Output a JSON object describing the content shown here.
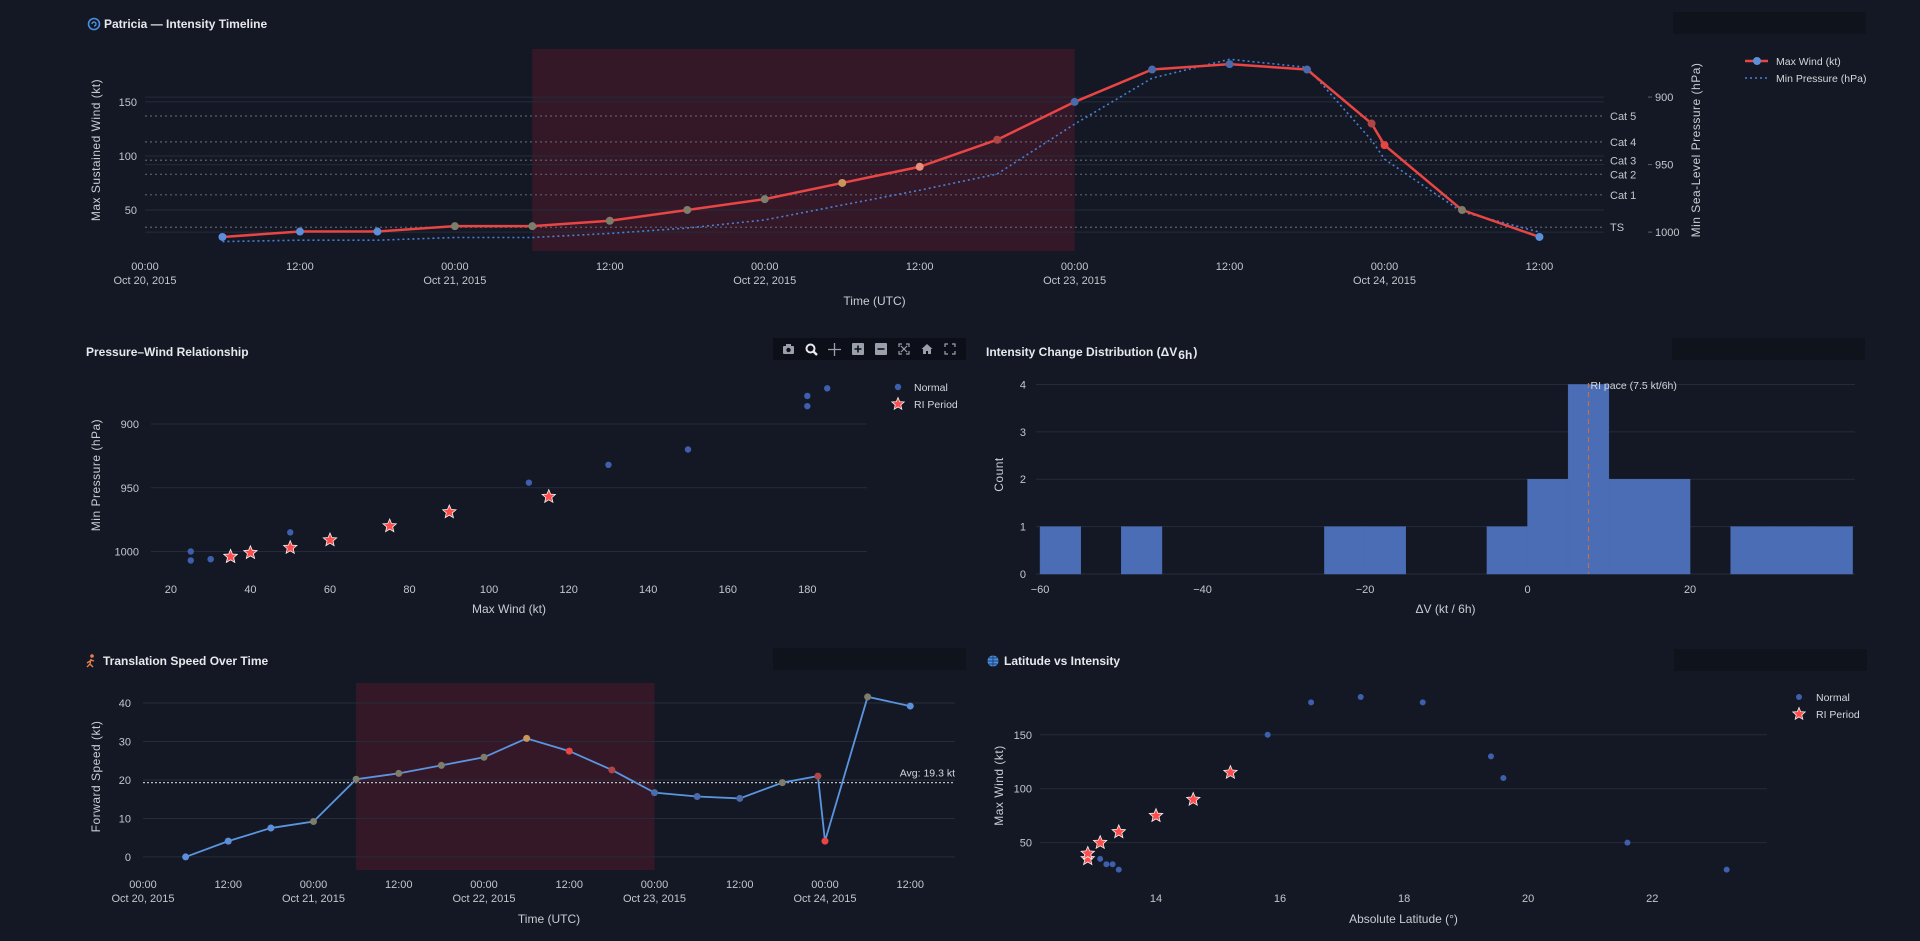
{
  "modebar": {
    "buttons": [
      "camera-icon",
      "zoom-icon",
      "pan-icon",
      "zoom-in-icon",
      "zoom-out-icon",
      "autoscale-icon",
      "home-icon",
      "fullscreen-icon"
    ]
  },
  "colors": {
    "background": "#131824",
    "grid": "#252b39",
    "wind": "#e84545",
    "pressure": "#4a7fd6",
    "ri_shade": "#351828",
    "histogram": "#4a6db5",
    "normal_marker": "#3d5fae",
    "ri_marker": "#ff4d4d",
    "speed_line": "#5b95e0"
  },
  "chart_data": [
    {
      "type": "line",
      "title": "Patricia — Intensity Timeline",
      "icon": "cyclone-icon",
      "xlabel": "Time (UTC)",
      "ylabel": "Max Sustained Wind (kt)",
      "y2label": "Min Sea-Level Pressure (hPa)",
      "x": [
        "2015-10-20 06:00",
        "2015-10-20 12:00",
        "2015-10-20 18:00",
        "2015-10-21 00:00",
        "2015-10-21 06:00",
        "2015-10-21 12:00",
        "2015-10-21 18:00",
        "2015-10-22 00:00",
        "2015-10-22 06:00",
        "2015-10-22 12:00",
        "2015-10-22 18:00",
        "2015-10-23 00:00",
        "2015-10-23 06:00",
        "2015-10-23 12:00",
        "2015-10-23 18:00",
        "2015-10-23 23:00",
        "2015-10-24 00:00",
        "2015-10-24 06:00",
        "2015-10-24 12:00"
      ],
      "series": [
        {
          "name": "Max Wind (kt)",
          "axis": "left",
          "style": "solid+markers",
          "values": [
            25,
            30,
            30,
            35,
            35,
            40,
            50,
            60,
            75,
            90,
            115,
            150,
            180,
            185,
            180,
            130,
            110,
            50,
            25
          ],
          "marker_colors": [
            "#5b8fd9",
            "#5b8fd9",
            "#5b8fd9",
            "#7d7d6b",
            "#7d7d6b",
            "#7d7d6b",
            "#7d7d6b",
            "#7d7d6b",
            "#c8955a",
            "#e8907a",
            "#b04545",
            "#4a6aaa",
            "#4a6aaa",
            "#4a6aaa",
            "#4a6aaa",
            "#b04545",
            "#e84545",
            "#7d7d6b",
            "#5b8fd9"
          ]
        },
        {
          "name": "Min Pressure (hPa)",
          "axis": "right",
          "style": "dotted",
          "values": [
            1007,
            1006,
            1006,
            1004,
            1004,
            1001,
            997,
            991,
            980,
            969,
            957,
            920,
            886,
            872,
            878,
            932,
            946,
            985,
            1000
          ]
        }
      ],
      "yticks": [
        50,
        100,
        150
      ],
      "y2ticks": [
        900,
        950,
        1000
      ],
      "y2_reversed": true,
      "xticks": [
        {
          "value": "2015-10-20 00:00",
          "time": "00:00",
          "date": "Oct 20, 2015"
        },
        {
          "value": "2015-10-20 12:00",
          "time": "12:00",
          "date": ""
        },
        {
          "value": "2015-10-21 00:00",
          "time": "00:00",
          "date": "Oct 21, 2015"
        },
        {
          "value": "2015-10-21 12:00",
          "time": "12:00",
          "date": ""
        },
        {
          "value": "2015-10-22 00:00",
          "time": "00:00",
          "date": "Oct 22, 2015"
        },
        {
          "value": "2015-10-22 12:00",
          "time": "12:00",
          "date": ""
        },
        {
          "value": "2015-10-23 00:00",
          "time": "00:00",
          "date": "Oct 23, 2015"
        },
        {
          "value": "2015-10-23 12:00",
          "time": "12:00",
          "date": ""
        },
        {
          "value": "2015-10-24 00:00",
          "time": "00:00",
          "date": "Oct 24, 2015"
        },
        {
          "value": "2015-10-24 12:00",
          "time": "12:00",
          "date": ""
        }
      ],
      "category_lines": [
        {
          "label": "Cat 5",
          "value": 137
        },
        {
          "label": "Cat 4",
          "value": 113
        },
        {
          "label": "Cat 3",
          "value": 96
        },
        {
          "label": "Cat 2",
          "value": 83
        },
        {
          "label": "Cat 1",
          "value": 64
        },
        {
          "label": "TS",
          "value": 34
        }
      ],
      "ri_period": {
        "start": "2015-10-21 06:00",
        "end": "2015-10-23 00:00"
      },
      "legend": "top-right",
      "grid": true
    },
    {
      "type": "scatter",
      "title": "Pressure–Wind Relationship",
      "xlabel": "Max Wind (kt)",
      "ylabel": "Min Pressure (hPa)",
      "xticks": [
        20,
        40,
        60,
        80,
        100,
        120,
        140,
        160,
        180
      ],
      "yticks": [
        900,
        950,
        1000
      ],
      "y_reversed": true,
      "series": [
        {
          "name": "Normal",
          "marker": "circle",
          "points": [
            [
              25,
              1000
            ],
            [
              25,
              1007
            ],
            [
              30,
              1006
            ],
            [
              30,
              1006
            ],
            [
              50,
              985
            ],
            [
              110,
              946
            ],
            [
              130,
              932
            ],
            [
              150,
              920
            ],
            [
              180,
              886
            ],
            [
              180,
              878
            ],
            [
              185,
              872
            ]
          ]
        },
        {
          "name": "RI Period",
          "marker": "star",
          "points": [
            [
              35,
              1004
            ],
            [
              35,
              1004
            ],
            [
              40,
              1001
            ],
            [
              50,
              997
            ],
            [
              60,
              991
            ],
            [
              75,
              980
            ],
            [
              90,
              969
            ],
            [
              115,
              957
            ]
          ]
        }
      ],
      "legend": "top-right",
      "grid": true
    },
    {
      "type": "bar",
      "title": "Intensity Change Distribution (ΔV",
      "title_sub": "6h",
      "title_end": ")",
      "xlabel": "ΔV (kt / 6h)",
      "ylabel": "Count",
      "bins": [
        {
          "start": -60,
          "end": -55,
          "count": 1
        },
        {
          "start": -50,
          "end": -45,
          "count": 1
        },
        {
          "start": -25,
          "end": -20,
          "count": 1
        },
        {
          "start": -20,
          "end": -15,
          "count": 1
        },
        {
          "start": -5,
          "end": 0,
          "count": 1
        },
        {
          "start": 0,
          "end": 5,
          "count": 2
        },
        {
          "start": 5,
          "end": 10,
          "count": 4
        },
        {
          "start": 10,
          "end": 15,
          "count": 2
        },
        {
          "start": 15,
          "end": 20,
          "count": 2
        },
        {
          "start": 25,
          "end": 30,
          "count": 1
        },
        {
          "start": 30,
          "end": 35,
          "count": 1
        },
        {
          "start": 35,
          "end": 40,
          "count": 1
        }
      ],
      "xticks": [
        {
          "value": -60,
          "label": "−60"
        },
        {
          "value": -40,
          "label": "−40"
        },
        {
          "value": -20,
          "label": "−20"
        },
        {
          "value": 0,
          "label": "0"
        },
        {
          "value": 20,
          "label": "20"
        }
      ],
      "yticks": [
        0,
        1,
        2,
        3,
        4
      ],
      "reference_line": {
        "value": 7.5,
        "label": "RI pace (7.5 kt/6h)"
      },
      "grid": true
    },
    {
      "type": "line",
      "title": "Translation Speed Over Time",
      "icon": "runner-icon",
      "xlabel": "Time (UTC)",
      "ylabel": "Forward Speed (kt)",
      "x": [
        "2015-10-20 06:00",
        "2015-10-20 12:00",
        "2015-10-20 18:00",
        "2015-10-21 00:00",
        "2015-10-21 06:00",
        "2015-10-21 12:00",
        "2015-10-21 18:00",
        "2015-10-22 00:00",
        "2015-10-22 06:00",
        "2015-10-22 12:00",
        "2015-10-22 18:00",
        "2015-10-23 00:00",
        "2015-10-23 06:00",
        "2015-10-23 12:00",
        "2015-10-23 18:00",
        "2015-10-23 23:00",
        "2015-10-24 00:00",
        "2015-10-24 06:00",
        "2015-10-24 12:00"
      ],
      "values": [
        0,
        4.1,
        7.5,
        9.2,
        20.2,
        21.7,
        23.8,
        25.9,
        30.8,
        27.5,
        22.6,
        16.7,
        15.7,
        15.2,
        19.3,
        21.0,
        4.1,
        41.6,
        39.2
      ],
      "marker_colors": [
        "#5b8fd9",
        "#5b8fd9",
        "#5b8fd9",
        "#7d7d6b",
        "#7d7d6b",
        "#7d7d6b",
        "#7d7d6b",
        "#7d7d6b",
        "#c8955a",
        "#e84545",
        "#b04545",
        "#4a6aaa",
        "#4a6aaa",
        "#4a6aaa",
        "#7d7d6b",
        "#b04545",
        "#e84545",
        "#7d7d6b",
        "#5b8fd9"
      ],
      "yticks": [
        0,
        10,
        20,
        30,
        40
      ],
      "xticks": [
        {
          "value": "2015-10-20 00:00",
          "time": "00:00",
          "date": "Oct 20, 2015"
        },
        {
          "value": "2015-10-20 12:00",
          "time": "12:00",
          "date": ""
        },
        {
          "value": "2015-10-21 00:00",
          "time": "00:00",
          "date": "Oct 21, 2015"
        },
        {
          "value": "2015-10-21 12:00",
          "time": "12:00",
          "date": ""
        },
        {
          "value": "2015-10-22 00:00",
          "time": "00:00",
          "date": "Oct 22, 2015"
        },
        {
          "value": "2015-10-22 12:00",
          "time": "12:00",
          "date": ""
        },
        {
          "value": "2015-10-23 00:00",
          "time": "00:00",
          "date": "Oct 23, 2015"
        },
        {
          "value": "2015-10-23 12:00",
          "time": "12:00",
          "date": ""
        },
        {
          "value": "2015-10-24 00:00",
          "time": "00:00",
          "date": "Oct 24, 2015"
        },
        {
          "value": "2015-10-24 12:00",
          "time": "12:00",
          "date": ""
        }
      ],
      "average": {
        "value": 19.3,
        "label": "Avg: 19.3 kt"
      },
      "ri_period": {
        "start": "2015-10-21 06:00",
        "end": "2015-10-23 00:00"
      },
      "grid": true
    },
    {
      "type": "scatter",
      "title": "Latitude vs Intensity",
      "icon": "globe-icon",
      "xlabel": "Absolute Latitude (°)",
      "ylabel": "Max Wind (kt)",
      "xticks": [
        14,
        16,
        18,
        20,
        22
      ],
      "yticks": [
        50,
        100,
        150
      ],
      "series": [
        {
          "name": "Normal",
          "marker": "circle",
          "points": [
            [
              13.4,
              25
            ],
            [
              13.2,
              30
            ],
            [
              13.3,
              30
            ],
            [
              13.1,
              35
            ],
            [
              15.8,
              150
            ],
            [
              16.5,
              180
            ],
            [
              17.3,
              185
            ],
            [
              18.3,
              180
            ],
            [
              19.4,
              130
            ],
            [
              19.6,
              110
            ],
            [
              21.6,
              50
            ],
            [
              23.2,
              25
            ]
          ]
        },
        {
          "name": "RI Period",
          "marker": "star",
          "points": [
            [
              12.9,
              35
            ],
            [
              12.9,
              40
            ],
            [
              13.1,
              50
            ],
            [
              13.4,
              60
            ],
            [
              14.0,
              75
            ],
            [
              14.6,
              90
            ],
            [
              15.2,
              115
            ]
          ]
        }
      ],
      "legend": "top-right",
      "grid": true
    }
  ]
}
